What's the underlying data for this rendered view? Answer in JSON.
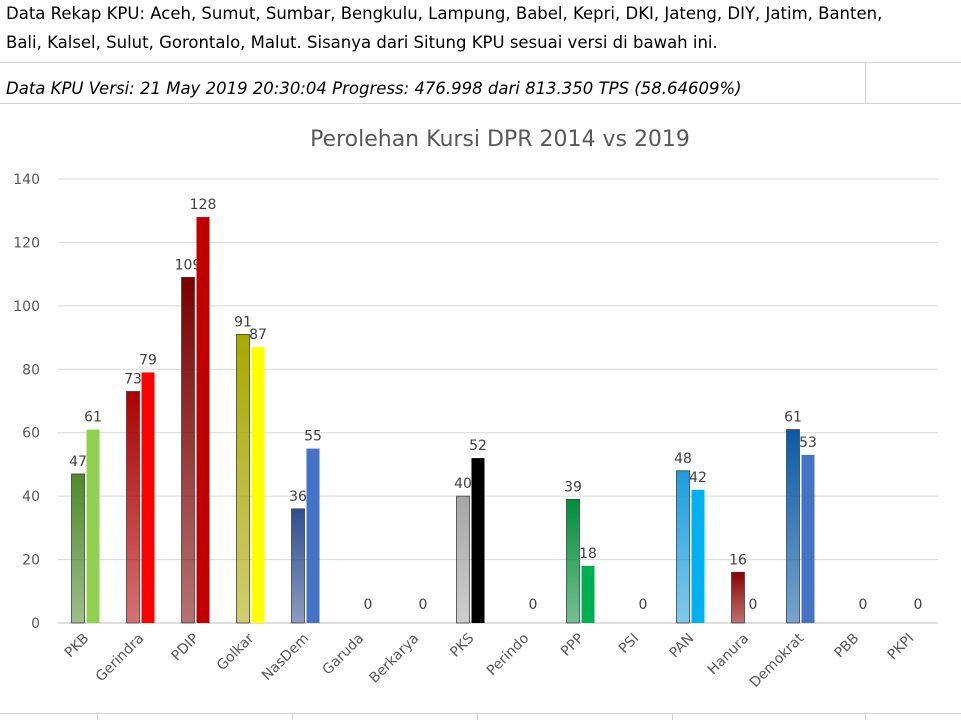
{
  "header": {
    "line1": "Data Rekap KPU: Aceh, Sumut, Sumbar, Bengkulu, Lampung, Babel, Kepri, DKI, Jateng, DIY, Jatim, Banten,",
    "line2": "Bali, Kalsel, Sulut, Gorontalo, Malut. Sisanya dari Situng KPU sesuai versi di bawah ini.",
    "version": "Data KPU Versi: 21 May 2019 20:30:04 Progress: 476.998 dari 813.350 TPS (58.64609%)"
  },
  "chart_data": {
    "type": "bar",
    "title": "Perolehan Kursi DPR 2014 vs 2019",
    "xlabel": "",
    "ylabel": "",
    "ylim": [
      0,
      140
    ],
    "yticks": [
      0,
      20,
      40,
      60,
      80,
      100,
      120,
      140
    ],
    "grid": true,
    "categories": [
      "PKB",
      "Gerindra",
      "PDIP",
      "Golkar",
      "NasDem",
      "Garuda",
      "Berkarya",
      "PKS",
      "Perindo",
      "PPP",
      "PSI",
      "PAN",
      "Hanura",
      "Demokrat",
      "PBB",
      "PKPI"
    ],
    "series": [
      {
        "values": [
          47,
          73,
          109,
          91,
          36,
          null,
          null,
          40,
          null,
          39,
          null,
          48,
          16,
          61,
          null,
          null
        ],
        "colors": [
          "#4e8a2a",
          "#b00000",
          "#7a0000",
          "#a8a800",
          "#2f4d8f",
          null,
          null,
          "#a6a6a6",
          null,
          "#008f3a",
          null,
          "#1a9ee0",
          "#8b0000",
          "#0a5aa8",
          null,
          null
        ]
      },
      {
        "values": [
          61,
          79,
          128,
          87,
          55,
          0,
          0,
          52,
          0,
          18,
          0,
          42,
          0,
          53,
          0,
          0
        ],
        "colors": [
          "#92d050",
          "#ff0000",
          "#c00000",
          "#ffff00",
          "#4472c4",
          null,
          null,
          "#000000",
          null,
          "#00b050",
          null,
          "#00b0f0",
          null,
          "#4472c4",
          null,
          null
        ]
      }
    ]
  }
}
